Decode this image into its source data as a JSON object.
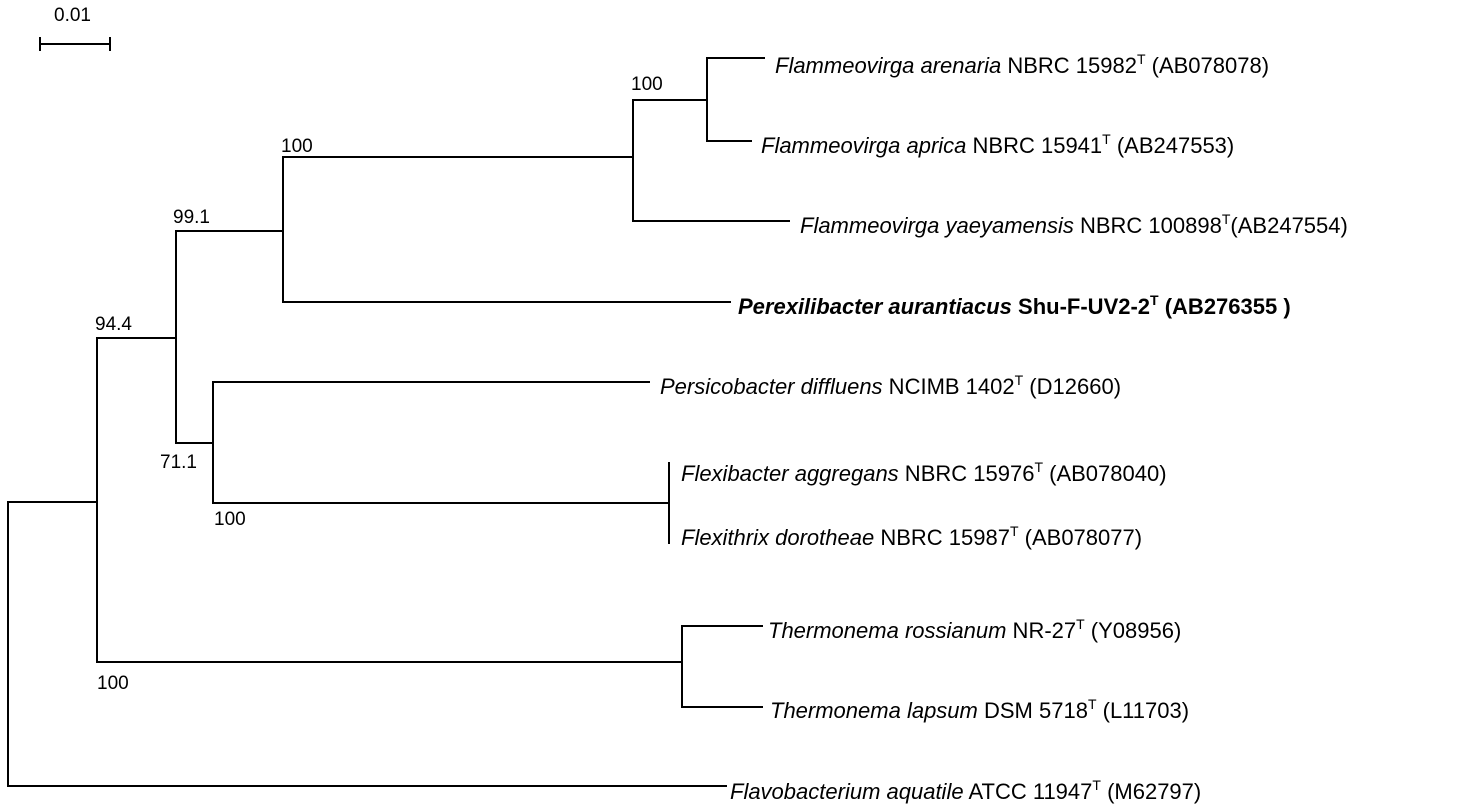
{
  "scale_bar": {
    "label": "0.01"
  },
  "taxa": [
    {
      "id": "fl-arenaria",
      "genus_species": "Flammeovirga arenaria",
      "strain": " NBRC 15982",
      "sup": "T",
      "accession": " (AB078078)",
      "bold": false
    },
    {
      "id": "fl-aprica",
      "genus_species": "Flammeovirga aprica",
      "strain": " NBRC 15941",
      "sup": "T",
      "accession": " (AB247553)",
      "bold": false
    },
    {
      "id": "fl-yaeyamensis",
      "genus_species": "Flammeovirga yaeyamensis",
      "strain": " NBRC 100898",
      "sup": "T",
      "accession": "(AB247554)",
      "bold": false
    },
    {
      "id": "perexilibacter",
      "genus_species": "Perexilibacter aurantiacus",
      "strain": " Shu-F-UV2-2",
      "sup": "T",
      "accession": " (AB276355 )",
      "bold": true
    },
    {
      "id": "persicobacter",
      "genus_species": "Persicobacter diffluens",
      "strain": " NCIMB 1402",
      "sup": "T",
      "accession": " (D12660)",
      "bold": false
    },
    {
      "id": "flexibacter",
      "genus_species": "Flexibacter aggregans",
      "strain": " NBRC 15976",
      "sup": "T",
      "accession": " (AB078040)",
      "bold": false
    },
    {
      "id": "flexithrix",
      "genus_species": "Flexithrix dorotheae",
      "strain": " NBRC 15987",
      "sup": "T",
      "accession": " (AB078077)",
      "bold": false
    },
    {
      "id": "th-rossianum",
      "genus_species": "Thermonema rossianum",
      "strain": " NR-27",
      "sup": "T",
      "accession": " (Y08956)",
      "bold": false
    },
    {
      "id": "th-lapsum",
      "genus_species": "Thermonema lapsum",
      "strain": " DSM 5718",
      "sup": "T",
      "accession": " (L11703)",
      "bold": false
    },
    {
      "id": "flavobacterium",
      "genus_species": "Flavobacterium aquatile",
      "strain": " ATCC 11947",
      "sup": "T",
      "accession": " (M62797)",
      "bold": false
    }
  ],
  "bootstrap": {
    "flammeovirga_pair": "100",
    "flammeovirga_clade": "100",
    "flammeo_perexili": "99.1",
    "top_group": "94.4",
    "persico_flexi": "71.1",
    "flexi_pair": "100",
    "thermonema": "100"
  }
}
